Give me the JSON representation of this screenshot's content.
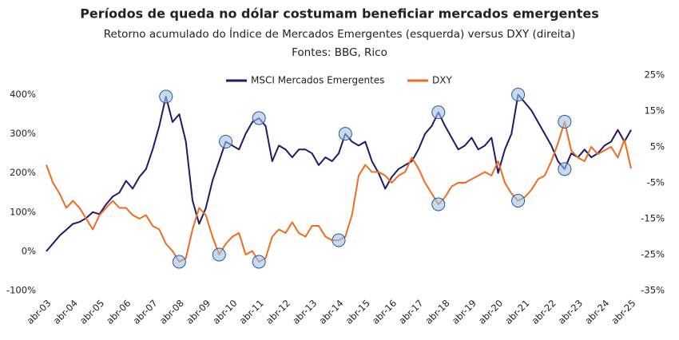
{
  "chart_data": {
    "type": "line",
    "title": "Períodos de queda no dólar costumam beneficiar mercados emergentes",
    "subtitle": "Retorno acumulado do Índice de Mercados Emergentes (esquerda) versus DXY (direita)",
    "source": "Fontes: BBG, Rico",
    "categories": [
      "abr-03",
      null,
      null,
      null,
      "abr-04",
      null,
      null,
      null,
      "abr-05",
      null,
      null,
      null,
      "abr-06",
      null,
      null,
      null,
      "abr-07",
      null,
      null,
      null,
      "abr-08",
      null,
      null,
      null,
      "abr-09",
      null,
      null,
      null,
      "abr-10",
      null,
      null,
      null,
      "abr-11",
      null,
      null,
      null,
      "abr-12",
      null,
      null,
      null,
      "abr-13",
      null,
      null,
      null,
      "abr-14",
      null,
      null,
      null,
      "abr-15",
      null,
      null,
      null,
      "abr-16",
      null,
      null,
      null,
      "abr-17",
      null,
      null,
      null,
      "abr-18",
      null,
      null,
      null,
      "abr-19",
      null,
      null,
      null,
      "abr-20",
      null,
      null,
      null,
      "abr-21",
      null,
      null,
      null,
      "abr-22",
      null,
      null,
      null,
      "abr-23",
      null,
      null,
      null,
      "abr-24",
      null,
      null,
      null,
      "abr-25"
    ],
    "series": [
      {
        "name": "MSCI Mercados Emergentes",
        "color": "#1f1a6b",
        "axis": "y",
        "values": [
          0,
          20,
          40,
          55,
          70,
          75,
          85,
          100,
          95,
          120,
          140,
          150,
          180,
          160,
          190,
          210,
          260,
          320,
          395,
          330,
          350,
          280,
          130,
          70,
          110,
          180,
          230,
          280,
          270,
          260,
          300,
          330,
          340,
          320,
          230,
          270,
          260,
          240,
          260,
          260,
          250,
          220,
          240,
          230,
          250,
          300,
          280,
          270,
          280,
          230,
          200,
          160,
          190,
          210,
          220,
          230,
          260,
          300,
          320,
          355,
          320,
          290,
          260,
          270,
          290,
          260,
          270,
          290,
          200,
          260,
          300,
          400,
          380,
          360,
          330,
          300,
          270,
          230,
          210,
          250,
          240,
          260,
          240,
          250,
          270,
          280,
          310,
          280,
          310
        ]
      },
      {
        "name": "DXY",
        "color": "#f26b1d",
        "axis": "y2",
        "values": [
          0,
          -5,
          -8,
          -12,
          -10,
          -12,
          -15,
          -18,
          -14,
          -12,
          -10,
          -12,
          -12,
          -14,
          -15,
          -14,
          -17,
          -18,
          -22,
          -24,
          -27,
          -26,
          -18,
          -12,
          -14,
          -20,
          -25,
          -22,
          -20,
          -19,
          -25,
          -24,
          -27,
          -26,
          -20,
          -18,
          -19,
          -16,
          -19,
          -20,
          -17,
          -17,
          -20,
          -21,
          -21,
          -20,
          -14,
          -3,
          0,
          -2,
          -2,
          -3,
          -5,
          -3,
          -2,
          2,
          -1,
          -5,
          -8,
          -11,
          -9,
          -6,
          -5,
          -5,
          -4,
          -3,
          -2,
          -3,
          1,
          -5,
          -8,
          -10,
          -9,
          -7,
          -4,
          -3,
          1,
          6,
          12,
          4,
          2,
          1,
          5,
          3,
          4,
          5,
          2,
          7,
          -1
        ]
      }
    ],
    "ylim": [
      -100,
      450
    ],
    "yticks": [
      {
        "value": -100,
        "label": "-100%"
      },
      {
        "value": 0,
        "label": "0%"
      },
      {
        "value": 100,
        "label": "100%"
      },
      {
        "value": 200,
        "label": "200%"
      },
      {
        "value": 300,
        "label": "300%"
      },
      {
        "value": 400,
        "label": "400%"
      }
    ],
    "y2lim": [
      -35,
      25
    ],
    "y2ticks": [
      {
        "value": -35,
        "label": "-35%"
      },
      {
        "value": -25,
        "label": "-25%"
      },
      {
        "value": -15,
        "label": "-15%"
      },
      {
        "value": -5,
        "label": "-5%"
      },
      {
        "value": 5,
        "label": "5%"
      },
      {
        "value": 15,
        "label": "15%"
      },
      {
        "value": 25,
        "label": "25%"
      }
    ],
    "legend": "top"
  }
}
